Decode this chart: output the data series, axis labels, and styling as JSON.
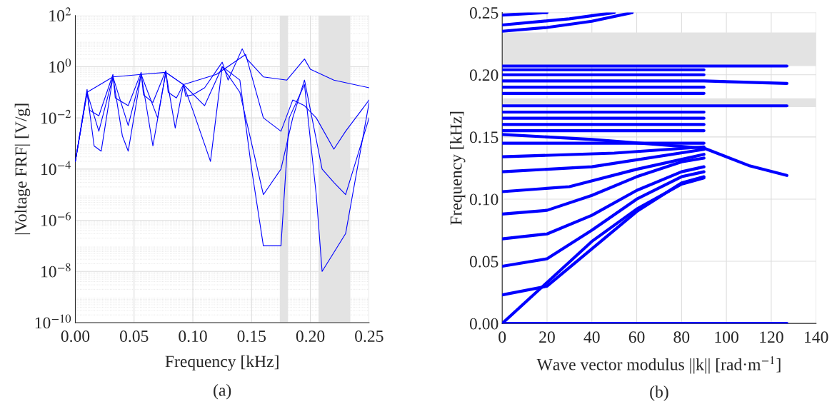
{
  "chart_data": [
    {
      "type": "line",
      "xlabel": "Frequency [kHz]",
      "ylabel": "|Voltage FRF| [V/g]",
      "log": "y",
      "grid": true,
      "line_style": "solid",
      "xlim": [
        0,
        0.25
      ],
      "xticks": [
        {
          "value": 0,
          "label": "0.00"
        },
        {
          "value": 0.05,
          "label": "0.05"
        },
        {
          "value": 0.1,
          "label": "0.10"
        },
        {
          "value": 0.15,
          "label": "0.15"
        },
        {
          "value": 0.2,
          "label": "0.20"
        },
        {
          "value": 0.25,
          "label": "0.25"
        }
      ],
      "ylim": [
        1e-10,
        100
      ],
      "yticks": [
        {
          "value": 1e-10,
          "label": "10$^{−10}$"
        },
        {
          "value": 1e-08,
          "label": "10$^{−8}$"
        },
        {
          "value": 1e-06,
          "label": "10$^{−6}$"
        },
        {
          "value": 0.0001,
          "label": "10$^{−4}$"
        },
        {
          "value": 0.01,
          "label": "10$^{−2}$"
        },
        {
          "value": 1,
          "label": "10$^{0}$"
        },
        {
          "value": 100,
          "label": "10$^{2}$"
        }
      ],
      "bands": [
        {
          "axis": "x",
          "from": 0.174,
          "to": 0.181,
          "color": "#e3e3e3"
        },
        {
          "axis": "x",
          "from": 0.207,
          "to": 0.234,
          "color": "#e3e3e3"
        }
      ],
      "annotations": [
        "(a)"
      ],
      "series": [
        {
          "color": "#0000ff",
          "x": [
            0,
            0.005,
            0.01,
            0.012,
            0.02,
            0.032,
            0.034,
            0.045,
            0.056,
            0.058,
            0.066,
            0.077,
            0.079,
            0.086,
            0.092,
            0.094,
            0.1,
            0.11,
            0.125,
            0.13,
            0.142,
            0.146,
            0.16,
            0.18,
            0.195,
            0.2,
            0.22,
            0.25
          ],
          "values": [
            0.0002,
            0.005,
            0.13,
            0.02,
            0.012,
            0.5,
            0.06,
            0.03,
            0.6,
            0.08,
            0.04,
            0.7,
            0.1,
            0.06,
            0.2,
            0.07,
            0.08,
            0.15,
            1.5,
            0.3,
            5,
            2,
            0.4,
            0.3,
            2,
            0.8,
            0.3,
            0.15
          ]
        },
        {
          "color": "#0000ff",
          "x": [
            0,
            0.01,
            0.016,
            0.022,
            0.032,
            0.04,
            0.045,
            0.056,
            0.066,
            0.077,
            0.085,
            0.092,
            0.1,
            0.115,
            0.125,
            0.14,
            0.15,
            0.16,
            0.175,
            0.182,
            0.195,
            0.205,
            0.21,
            0.23,
            0.25
          ],
          "values": [
            0.0002,
            0.1,
            0.0008,
            0.0005,
            0.4,
            0.002,
            0.0005,
            0.5,
            0.0008,
            0.6,
            0.004,
            0.2,
            0.02,
            0.0002,
            1,
            0.3,
            0.0001,
            1e-07,
            1e-07,
            0.01,
            0.2,
            1e-05,
            1e-08,
            3e-07,
            0.04
          ]
        },
        {
          "color": "#0000ff",
          "x": [
            0,
            0.01,
            0.02,
            0.032,
            0.045,
            0.056,
            0.07,
            0.077,
            0.092,
            0.11,
            0.125,
            0.14,
            0.15,
            0.16,
            0.175,
            0.185,
            0.195,
            0.21,
            0.22,
            0.23,
            0.25
          ],
          "values": [
            0.0002,
            0.1,
            0.003,
            0.4,
            0.005,
            0.5,
            0.01,
            0.6,
            0.2,
            0.03,
            1,
            0.1,
            0.001,
            1e-05,
            0.0001,
            0.01,
            0.3,
            0.0001,
            3e-05,
            1e-05,
            0.01
          ]
        },
        {
          "color": "#0000ff",
          "x": [
            0,
            0.01,
            0.032,
            0.056,
            0.077,
            0.092,
            0.12,
            0.145,
            0.16,
            0.175,
            0.185,
            0.195,
            0.205,
            0.22,
            0.23,
            0.25
          ],
          "values": [
            0.0002,
            0.1,
            0.4,
            0.5,
            0.6,
            0.2,
            0.5,
            3,
            0.01,
            0.003,
            0.05,
            0.03,
            0.01,
            0.0006,
            0.003,
            0.05
          ]
        }
      ]
    },
    {
      "type": "line",
      "xlabel": "Wave vector modulus ||k|| [rad·m$^{−1}$]",
      "ylabel": "Frequency [kHz]",
      "grid": true,
      "line_style": "solid",
      "xlim": [
        0,
        140
      ],
      "xticks": [
        0,
        20,
        40,
        60,
        80,
        100,
        120,
        140
      ],
      "ylim": [
        0,
        0.25
      ],
      "yticks": [
        {
          "value": 0,
          "label": "0.00"
        },
        {
          "value": 0.05,
          "label": "0.05"
        },
        {
          "value": 0.1,
          "label": "0.10"
        },
        {
          "value": 0.15,
          "label": "0.15"
        },
        {
          "value": 0.2,
          "label": "0.20"
        },
        {
          "value": 0.25,
          "label": "0.25"
        }
      ],
      "bands": [
        {
          "axis": "y",
          "from": 0.174,
          "to": 0.181,
          "color": "#e3e3e3"
        },
        {
          "axis": "y",
          "from": 0.207,
          "to": 0.234,
          "color": "#e3e3e3"
        }
      ],
      "annotations": [
        "(b)"
      ],
      "series": [
        {
          "color": "#0000ff",
          "x": [
            0,
            127
          ],
          "values": [
            0,
            0
          ]
        },
        {
          "color": "#0000ff",
          "x": [
            0,
            20,
            40,
            60,
            80,
            90
          ],
          "values": [
            0,
            0.033,
            0.066,
            0.092,
            0.112,
            0.117
          ]
        },
        {
          "color": "#0000ff",
          "x": [
            0,
            20,
            40,
            60,
            80,
            90
          ],
          "values": [
            0.023,
            0.03,
            0.06,
            0.09,
            0.113,
            0.118
          ]
        },
        {
          "color": "#0000ff",
          "x": [
            0,
            20,
            40,
            60,
            80,
            90
          ],
          "values": [
            0.046,
            0.052,
            0.075,
            0.1,
            0.118,
            0.122
          ]
        },
        {
          "color": "#0000ff",
          "x": [
            0,
            20,
            40,
            60,
            80,
            90
          ],
          "values": [
            0.068,
            0.072,
            0.087,
            0.107,
            0.122,
            0.126
          ]
        },
        {
          "color": "#0000ff",
          "x": [
            0,
            20,
            40,
            60,
            80,
            90
          ],
          "values": [
            0.088,
            0.091,
            0.103,
            0.118,
            0.13,
            0.133
          ]
        },
        {
          "color": "#0000ff",
          "x": [
            0,
            30,
            60,
            90
          ],
          "values": [
            0.106,
            0.11,
            0.124,
            0.136
          ]
        },
        {
          "color": "#0000ff",
          "x": [
            0,
            40,
            90
          ],
          "values": [
            0.122,
            0.126,
            0.14
          ]
        },
        {
          "color": "#0000ff",
          "x": [
            0,
            50,
            90
          ],
          "values": [
            0.134,
            0.137,
            0.142
          ]
        },
        {
          "color": "#0000ff",
          "x": [
            0,
            40,
            90,
            110,
            127
          ],
          "values": [
            0.152,
            0.148,
            0.141,
            0.127,
            0.119
          ]
        },
        {
          "color": "#0000ff",
          "x": [
            0,
            90
          ],
          "values": [
            0.145,
            0.145
          ]
        },
        {
          "color": "#0000ff",
          "x": [
            0,
            90
          ],
          "values": [
            0.155,
            0.155
          ]
        },
        {
          "color": "#0000ff",
          "x": [
            0,
            90
          ],
          "values": [
            0.16,
            0.16
          ]
        },
        {
          "color": "#0000ff",
          "x": [
            0,
            90
          ],
          "values": [
            0.165,
            0.165
          ]
        },
        {
          "color": "#0000ff",
          "x": [
            0,
            90
          ],
          "values": [
            0.17,
            0.17
          ]
        },
        {
          "color": "#0000ff",
          "x": [
            0,
            127
          ],
          "values": [
            0.175,
            0.175
          ]
        },
        {
          "color": "#0000ff",
          "x": [
            0,
            90
          ],
          "values": [
            0.185,
            0.185
          ]
        },
        {
          "color": "#0000ff",
          "x": [
            0,
            90
          ],
          "values": [
            0.19,
            0.19
          ]
        },
        {
          "color": "#0000ff",
          "x": [
            0,
            90,
            127
          ],
          "values": [
            0.195,
            0.195,
            0.193
          ]
        },
        {
          "color": "#0000ff",
          "x": [
            0,
            90
          ],
          "values": [
            0.2,
            0.2
          ]
        },
        {
          "color": "#0000ff",
          "x": [
            0,
            90
          ],
          "values": [
            0.204,
            0.204
          ]
        },
        {
          "color": "#0000ff",
          "x": [
            0,
            127
          ],
          "values": [
            0.207,
            0.207
          ]
        },
        {
          "color": "#0000ff",
          "x": [
            0,
            20,
            40,
            58
          ],
          "values": [
            0.235,
            0.238,
            0.243,
            0.25
          ]
        },
        {
          "color": "#0000ff",
          "x": [
            0,
            30,
            50
          ],
          "values": [
            0.24,
            0.245,
            0.25
          ]
        },
        {
          "color": "#0000ff",
          "x": [
            0,
            20
          ],
          "values": [
            0.248,
            0.25
          ]
        }
      ]
    }
  ]
}
